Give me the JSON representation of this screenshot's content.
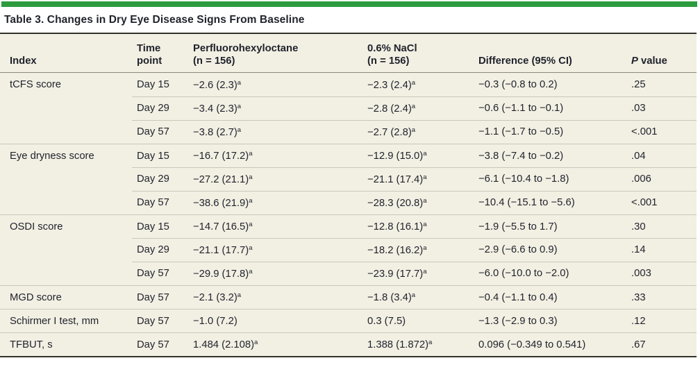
{
  "title": "Table 3. Changes in Dry Eye Disease Signs From Baseline",
  "colors": {
    "accent_green": "#2d9c3e",
    "table_background": "#f2efe3",
    "rule_dark": "#33332c",
    "rule_light": "#c9c7ba"
  },
  "header": {
    "index": "Index",
    "time_line1": "Time",
    "time_line2": "point",
    "pfho_line1": "Perfluorohexyloctane",
    "pfho_line2": "(n = 156)",
    "nacl_line1": "0.6% NaCl",
    "nacl_line2": "(n = 156)",
    "difference": "Difference (95% CI)",
    "pvalue_p": "P",
    "pvalue_rest": " value"
  },
  "rows": [
    {
      "index": "tCFS score",
      "time": "Day 15",
      "pfho": "−2.6 (2.3)",
      "pfho_sup": "a",
      "nacl": "−2.3 (2.4)",
      "nacl_sup": "a",
      "diff": "−0.3 (−0.8 to 0.2)",
      "p": ".25"
    },
    {
      "index": "",
      "time": "Day 29",
      "pfho": "−3.4 (2.3)",
      "pfho_sup": "a",
      "nacl": "−2.8 (2.4)",
      "nacl_sup": "a",
      "diff": "−0.6 (−1.1 to −0.1)",
      "p": ".03"
    },
    {
      "index": "",
      "time": "Day 57",
      "pfho": "−3.8 (2.7)",
      "pfho_sup": "a",
      "nacl": "−2.7 (2.8)",
      "nacl_sup": "a",
      "diff": "−1.1 (−1.7 to −0.5)",
      "p": "<.001"
    },
    {
      "index": "Eye dryness score",
      "time": "Day 15",
      "pfho": "−16.7 (17.2)",
      "pfho_sup": "a",
      "nacl": "−12.9 (15.0)",
      "nacl_sup": "a",
      "diff": "−3.8 (−7.4 to −0.2)",
      "p": ".04"
    },
    {
      "index": "",
      "time": "Day 29",
      "pfho": "−27.2 (21.1)",
      "pfho_sup": "a",
      "nacl": "−21.1 (17.4)",
      "nacl_sup": "a",
      "diff": "−6.1 (−10.4 to −1.8)",
      "p": ".006"
    },
    {
      "index": "",
      "time": "Day 57",
      "pfho": "−38.6 (21.9)",
      "pfho_sup": "a",
      "nacl": "−28.3 (20.8)",
      "nacl_sup": "a",
      "diff": "−10.4 (−15.1 to −5.6)",
      "p": "<.001"
    },
    {
      "index": "OSDI score",
      "time": "Day 15",
      "pfho": "−14.7 (16.5)",
      "pfho_sup": "a",
      "nacl": "−12.8 (16.1)",
      "nacl_sup": "a",
      "diff": "−1.9 (−5.5 to 1.7)",
      "p": ".30"
    },
    {
      "index": "",
      "time": "Day 29",
      "pfho": "−21.1 (17.7)",
      "pfho_sup": "a",
      "nacl": "−18.2 (16.2)",
      "nacl_sup": "a",
      "diff": "−2.9 (−6.6 to 0.9)",
      "p": ".14"
    },
    {
      "index": "",
      "time": "Day 57",
      "pfho": "−29.9 (17.8)",
      "pfho_sup": "a",
      "nacl": "−23.9 (17.7)",
      "nacl_sup": "a",
      "diff": "−6.0 (−10.0 to −2.0)",
      "p": ".003"
    },
    {
      "index": "MGD score",
      "time": "Day 57",
      "pfho": "−2.1 (3.2)",
      "pfho_sup": "a",
      "nacl": "−1.8 (3.4)",
      "nacl_sup": "a",
      "diff": "−0.4 (−1.1 to 0.4)",
      "p": ".33"
    },
    {
      "index": "Schirmer I test, mm",
      "time": "Day 57",
      "pfho": "−1.0 (7.2)",
      "pfho_sup": "",
      "nacl": "0.3 (7.5)",
      "nacl_sup": "",
      "diff": "−1.3 (−2.9 to 0.3)",
      "p": ".12"
    },
    {
      "index": "TFBUT, s",
      "time": "Day 57",
      "pfho": "1.484 (2.108)",
      "pfho_sup": "a",
      "nacl": "1.388 (1.872)",
      "nacl_sup": "a",
      "diff": "0.096 (−0.349 to 0.541)",
      "p": ".67"
    }
  ]
}
